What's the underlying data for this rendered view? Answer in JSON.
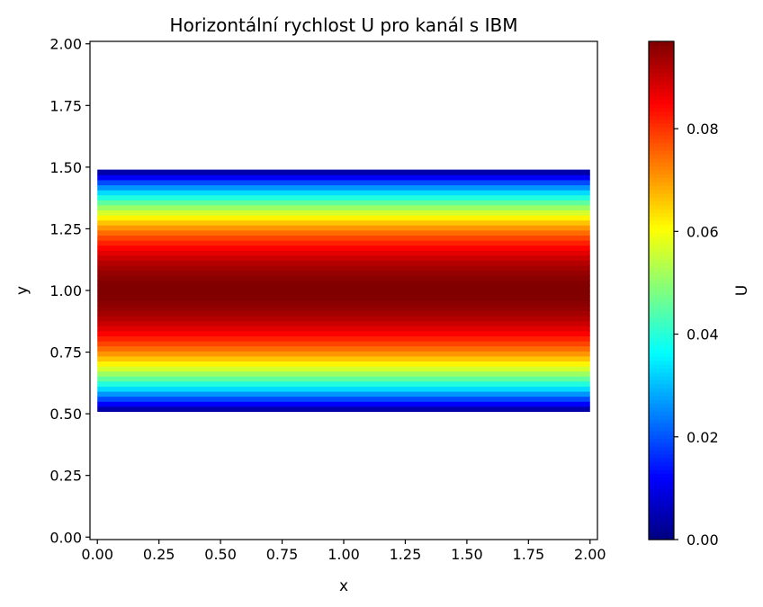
{
  "chart_data": {
    "type": "heatmap",
    "title": "Horizontální rychlost U pro kanál s IBM",
    "xlabel": "x",
    "ylabel": "y",
    "xlim": [
      -0.03,
      2.03
    ],
    "ylim": [
      -0.01,
      2.01
    ],
    "x_ticks": [
      "0.00",
      "0.25",
      "0.50",
      "0.75",
      "1.00",
      "1.25",
      "1.50",
      "1.75",
      "2.00"
    ],
    "y_ticks": [
      "0.00",
      "0.25",
      "0.50",
      "0.75",
      "1.00",
      "1.25",
      "1.50",
      "1.75",
      "2.00"
    ],
    "field": {
      "x_range": [
        0.0,
        2.0
      ],
      "channel_y_range": [
        0.51,
        1.49
      ],
      "profile": "parabolic",
      "u_max": 0.097,
      "outside_channel": "empty"
    },
    "colorbar": {
      "label": "U",
      "colormap": "jet",
      "vmin": 0.0,
      "vmax": 0.097,
      "ticks": [
        "0.00",
        "0.02",
        "0.04",
        "0.06",
        "0.08"
      ]
    }
  }
}
